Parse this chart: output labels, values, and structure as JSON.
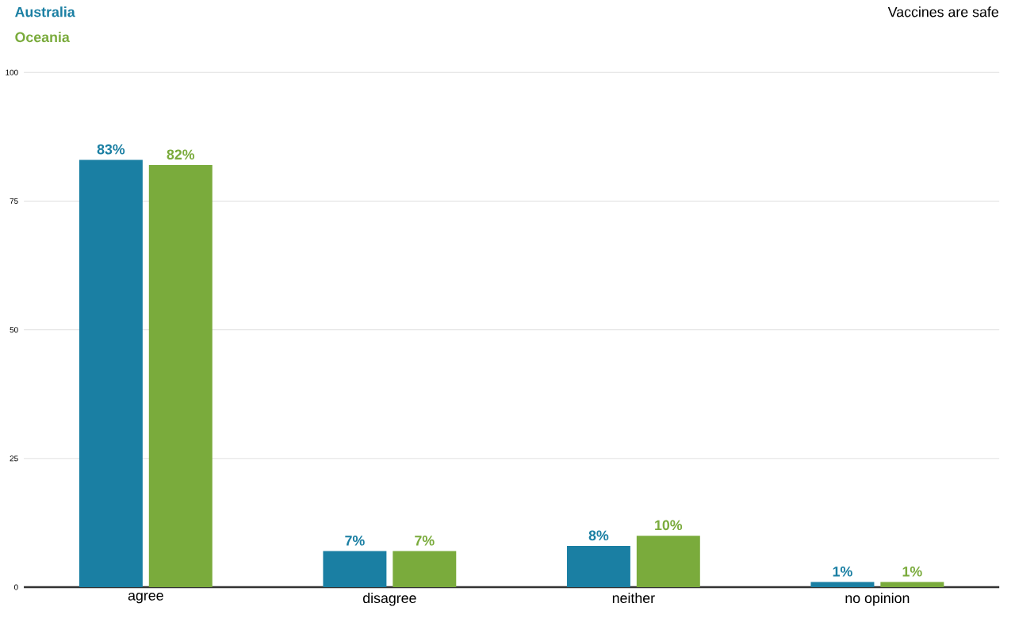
{
  "chart_data": {
    "type": "bar",
    "title": "Vaccines are safe",
    "categories": [
      "agree",
      "disagree",
      "neither",
      "no opinion"
    ],
    "series": [
      {
        "name": "Australia",
        "color": "#1a7fa3",
        "values": [
          83,
          7,
          8,
          1
        ],
        "value_labels": [
          "83%",
          "7%",
          "8%",
          "1%"
        ]
      },
      {
        "name": "Oceania",
        "color": "#7aab3c",
        "values": [
          82,
          7,
          10,
          1
        ],
        "value_labels": [
          "82%",
          "7%",
          "10%",
          "1%"
        ]
      }
    ],
    "ylim": [
      0,
      100
    ],
    "yticks": [
      0,
      25,
      50,
      75,
      100
    ],
    "grid": "y",
    "legend": "top left"
  }
}
